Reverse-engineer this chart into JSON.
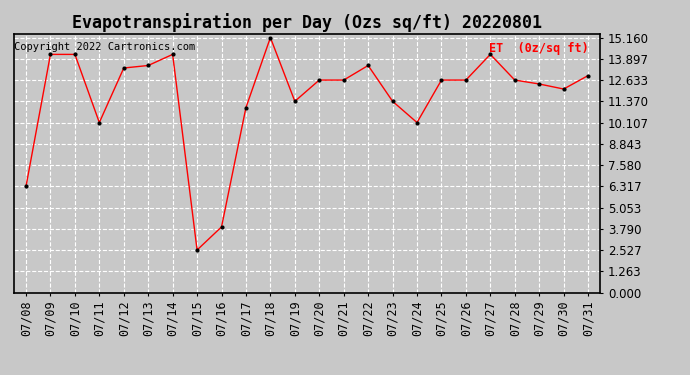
{
  "title": "Evapotranspiration per Day (Ozs sq/ft) 20220801",
  "copyright": "Copyright 2022 Cartronics.com",
  "legend_label": "ET  (0z/sq ft)",
  "dates": [
    "07/08",
    "07/09",
    "07/10",
    "07/11",
    "07/12",
    "07/13",
    "07/14",
    "07/15",
    "07/16",
    "07/17",
    "07/18",
    "07/19",
    "07/20",
    "07/21",
    "07/22",
    "07/23",
    "07/24",
    "07/25",
    "07/26",
    "07/27",
    "07/28",
    "07/29",
    "07/30",
    "07/31"
  ],
  "values": [
    6.317,
    14.16,
    14.16,
    10.107,
    13.35,
    13.5,
    14.16,
    2.527,
    3.9,
    11.0,
    15.16,
    11.37,
    12.633,
    12.633,
    13.5,
    11.37,
    10.107,
    12.633,
    12.633,
    14.16,
    12.633,
    12.4,
    12.1,
    12.9
  ],
  "yticks": [
    0.0,
    1.263,
    2.527,
    3.79,
    5.053,
    6.317,
    7.58,
    8.843,
    10.107,
    11.37,
    12.633,
    13.897,
    15.16
  ],
  "ylim_min": 0.0,
  "ylim_max": 15.16,
  "line_color": "#ff0000",
  "marker_color": "#000000",
  "background_color": "#c8c8c8",
  "plot_bg_color": "#c8c8c8",
  "grid_color": "#ffffff",
  "title_fontsize": 12,
  "tick_fontsize": 8.5,
  "copyright_fontsize": 7.5
}
